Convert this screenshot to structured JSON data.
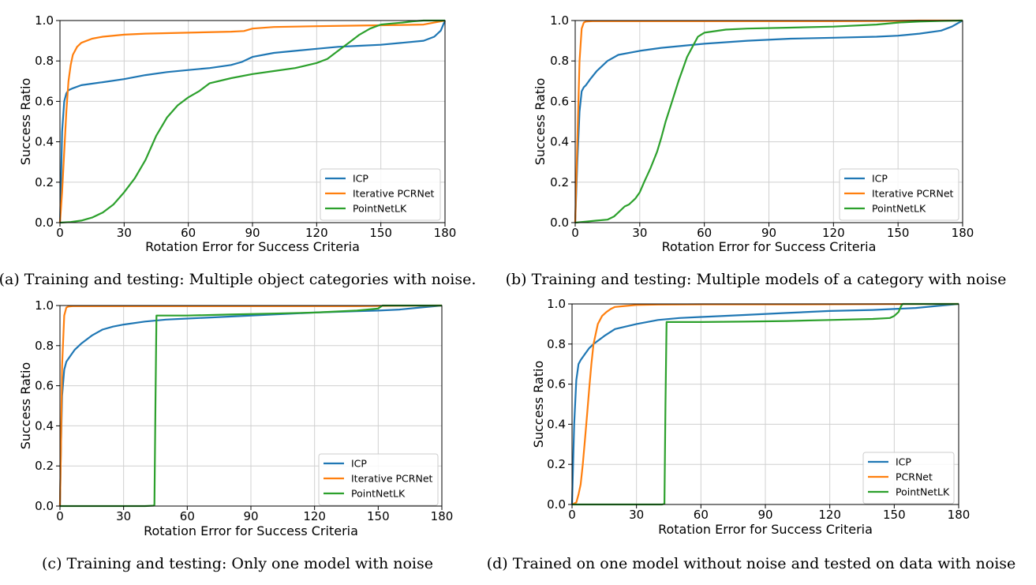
{
  "colors": {
    "ICP": "#1f77b4",
    "PCRNet": "#ff7f0e",
    "PointNetLK": "#2ca02c"
  },
  "chart_data": [
    {
      "type": "line",
      "caption": "(a) Training and testing: Multiple object categories with noise.",
      "xlabel": "Rotation Error for Success Criteria",
      "ylabel": "Success Ratio",
      "xlim": [
        0,
        180
      ],
      "ylim": [
        0,
        1
      ],
      "xticks": [
        0,
        30,
        60,
        90,
        120,
        150,
        180
      ],
      "yticks": [
        0.0,
        0.2,
        0.4,
        0.6,
        0.8,
        1.0
      ],
      "grid": true,
      "legend": "bottom-right",
      "series": [
        {
          "name": "ICP",
          "x": [
            0,
            0.5,
            1,
            2,
            3,
            4,
            6,
            10,
            20,
            30,
            40,
            50,
            60,
            70,
            80,
            85,
            90,
            100,
            110,
            120,
            130,
            140,
            150,
            160,
            170,
            175,
            178,
            180
          ],
          "y": [
            0,
            0.2,
            0.45,
            0.6,
            0.64,
            0.655,
            0.665,
            0.68,
            0.695,
            0.71,
            0.73,
            0.745,
            0.755,
            0.765,
            0.78,
            0.795,
            0.82,
            0.84,
            0.85,
            0.86,
            0.87,
            0.875,
            0.88,
            0.89,
            0.9,
            0.92,
            0.95,
            1.0
          ]
        },
        {
          "name": "Iterative PCRNet",
          "x": [
            0,
            1,
            2,
            3,
            4,
            5,
            6,
            8,
            10,
            15,
            20,
            30,
            40,
            60,
            80,
            86,
            90,
            100,
            120,
            140,
            160,
            170,
            180
          ],
          "y": [
            0,
            0.15,
            0.35,
            0.55,
            0.7,
            0.78,
            0.83,
            0.87,
            0.89,
            0.91,
            0.92,
            0.93,
            0.935,
            0.94,
            0.945,
            0.948,
            0.96,
            0.968,
            0.972,
            0.975,
            0.978,
            0.98,
            1.0
          ]
        },
        {
          "name": "PointNetLK",
          "x": [
            0,
            5,
            10,
            15,
            20,
            25,
            30,
            35,
            40,
            45,
            50,
            55,
            60,
            65,
            70,
            80,
            90,
            100,
            110,
            120,
            125,
            130,
            135,
            140,
            145,
            150,
            155,
            160,
            165,
            170,
            180
          ],
          "y": [
            0,
            0.003,
            0.01,
            0.025,
            0.05,
            0.09,
            0.15,
            0.22,
            0.31,
            0.43,
            0.52,
            0.58,
            0.62,
            0.65,
            0.69,
            0.715,
            0.735,
            0.75,
            0.765,
            0.79,
            0.81,
            0.85,
            0.89,
            0.93,
            0.96,
            0.98,
            0.985,
            0.99,
            0.996,
            1.0,
            1.0
          ]
        }
      ]
    },
    {
      "type": "line",
      "caption": "(b) Training and testing: Multiple models of a category with noise",
      "xlabel": "Rotation Error for Success Criteria",
      "ylabel": "Success Ratio",
      "xlim": [
        0,
        180
      ],
      "ylim": [
        0,
        1
      ],
      "xticks": [
        0,
        30,
        60,
        90,
        120,
        150,
        180
      ],
      "yticks": [
        0.0,
        0.2,
        0.4,
        0.6,
        0.8,
        1.0
      ],
      "grid": true,
      "legend": "bottom-right",
      "series": [
        {
          "name": "ICP",
          "x": [
            0,
            1,
            2,
            3,
            4,
            5,
            7,
            10,
            15,
            20,
            30,
            40,
            50,
            60,
            80,
            100,
            120,
            140,
            150,
            160,
            170,
            175,
            180
          ],
          "y": [
            0,
            0.3,
            0.55,
            0.65,
            0.67,
            0.68,
            0.71,
            0.75,
            0.8,
            0.83,
            0.85,
            0.865,
            0.875,
            0.885,
            0.9,
            0.91,
            0.915,
            0.92,
            0.925,
            0.935,
            0.95,
            0.97,
            1.0
          ]
        },
        {
          "name": "Iterative PCRNet",
          "x": [
            0,
            1,
            2,
            3,
            4,
            5,
            8,
            20,
            60,
            120,
            150,
            160,
            180
          ],
          "y": [
            0,
            0.4,
            0.8,
            0.96,
            0.99,
            0.995,
            0.997,
            0.997,
            0.997,
            0.997,
            0.998,
            1.0,
            1.0
          ]
        },
        {
          "name": "PointNetLK",
          "x": [
            0,
            5,
            10,
            15,
            18,
            20,
            23,
            25,
            28,
            30,
            32,
            35,
            38,
            40,
            42,
            45,
            48,
            50,
            52,
            55,
            57,
            60,
            70,
            80,
            100,
            120,
            140,
            150,
            160,
            170,
            180
          ],
          "y": [
            0,
            0.005,
            0.01,
            0.015,
            0.03,
            0.05,
            0.08,
            0.09,
            0.12,
            0.15,
            0.2,
            0.27,
            0.35,
            0.42,
            0.5,
            0.6,
            0.7,
            0.76,
            0.82,
            0.88,
            0.92,
            0.94,
            0.955,
            0.96,
            0.965,
            0.97,
            0.98,
            0.99,
            0.995,
            0.998,
            1.0
          ]
        }
      ]
    },
    {
      "type": "line",
      "caption": "(c) Training and testing: Only one model with noise",
      "xlabel": "Rotation Error for Success Criteria",
      "ylabel": "Success Ratio",
      "xlim": [
        0,
        180
      ],
      "ylim": [
        0,
        1
      ],
      "xticks": [
        0,
        30,
        60,
        90,
        120,
        150,
        180
      ],
      "yticks": [
        0.0,
        0.2,
        0.4,
        0.6,
        0.8,
        1.0
      ],
      "grid": true,
      "legend": "bottom-right",
      "series": [
        {
          "name": "ICP",
          "x": [
            0,
            0.5,
            1,
            2,
            3,
            5,
            7,
            10,
            15,
            20,
            25,
            30,
            40,
            50,
            60,
            80,
            100,
            120,
            140,
            150,
            160,
            170,
            180
          ],
          "y": [
            0,
            0.3,
            0.55,
            0.68,
            0.72,
            0.75,
            0.78,
            0.81,
            0.85,
            0.88,
            0.895,
            0.905,
            0.92,
            0.93,
            0.935,
            0.945,
            0.955,
            0.965,
            0.972,
            0.975,
            0.98,
            0.99,
            1.0
          ]
        },
        {
          "name": "Iterative PCRNet",
          "x": [
            0,
            0.5,
            1,
            2,
            3,
            4,
            6,
            20,
            100,
            140,
            150,
            160,
            180
          ],
          "y": [
            0,
            0.3,
            0.7,
            0.95,
            0.99,
            0.995,
            0.997,
            0.997,
            0.997,
            0.997,
            0.998,
            0.999,
            1.0
          ]
        },
        {
          "name": "PointNetLK",
          "x": [
            0,
            20,
            40,
            44,
            44.5,
            45,
            45.5,
            60,
            80,
            100,
            120,
            140,
            150,
            152,
            160,
            170,
            180
          ],
          "y": [
            0,
            0.0,
            0.0,
            0.002,
            0.005,
            0.5,
            0.95,
            0.95,
            0.955,
            0.96,
            0.965,
            0.975,
            0.985,
            1.0,
            1.0,
            1.0,
            1.0
          ]
        }
      ]
    },
    {
      "type": "line",
      "caption": "(d) Trained on one model without noise and tested on data with noise",
      "xlabel": "Rotation Error for Success Criteria",
      "ylabel": "Success Ratio",
      "xlim": [
        0,
        180
      ],
      "ylim": [
        0,
        1
      ],
      "xticks": [
        0,
        30,
        60,
        90,
        120,
        150,
        180
      ],
      "yticks": [
        0.0,
        0.2,
        0.4,
        0.6,
        0.8,
        1.0
      ],
      "grid": true,
      "legend": "bottom-right",
      "series": [
        {
          "name": "ICP",
          "x": [
            0,
            1,
            2,
            3,
            4,
            6,
            8,
            10,
            15,
            20,
            30,
            40,
            50,
            60,
            80,
            100,
            120,
            140,
            150,
            160,
            170,
            180
          ],
          "y": [
            0,
            0.4,
            0.62,
            0.7,
            0.72,
            0.75,
            0.78,
            0.8,
            0.84,
            0.875,
            0.9,
            0.92,
            0.93,
            0.935,
            0.945,
            0.955,
            0.965,
            0.97,
            0.975,
            0.98,
            0.99,
            1.0
          ]
        },
        {
          "name": "PCRNet",
          "x": [
            0,
            2,
            3,
            4,
            5,
            6,
            7,
            8,
            9,
            10,
            12,
            14,
            16,
            18,
            20,
            25,
            30,
            40,
            60,
            100,
            140,
            180
          ],
          "y": [
            0,
            0.01,
            0.05,
            0.1,
            0.2,
            0.32,
            0.45,
            0.58,
            0.7,
            0.8,
            0.9,
            0.94,
            0.96,
            0.975,
            0.985,
            0.99,
            0.995,
            0.997,
            0.998,
            0.998,
            0.999,
            1.0
          ]
        },
        {
          "name": "PointNetLK",
          "x": [
            0,
            20,
            42,
            43,
            43.5,
            44,
            50,
            60,
            80,
            100,
            120,
            140,
            148,
            150,
            152,
            153,
            153.5,
            154,
            160,
            180
          ],
          "y": [
            0,
            0,
            0,
            0.003,
            0.5,
            0.91,
            0.91,
            0.91,
            0.912,
            0.915,
            0.92,
            0.925,
            0.93,
            0.94,
            0.96,
            0.985,
            0.995,
            1.0,
            1.0,
            1.0
          ]
        }
      ]
    }
  ]
}
